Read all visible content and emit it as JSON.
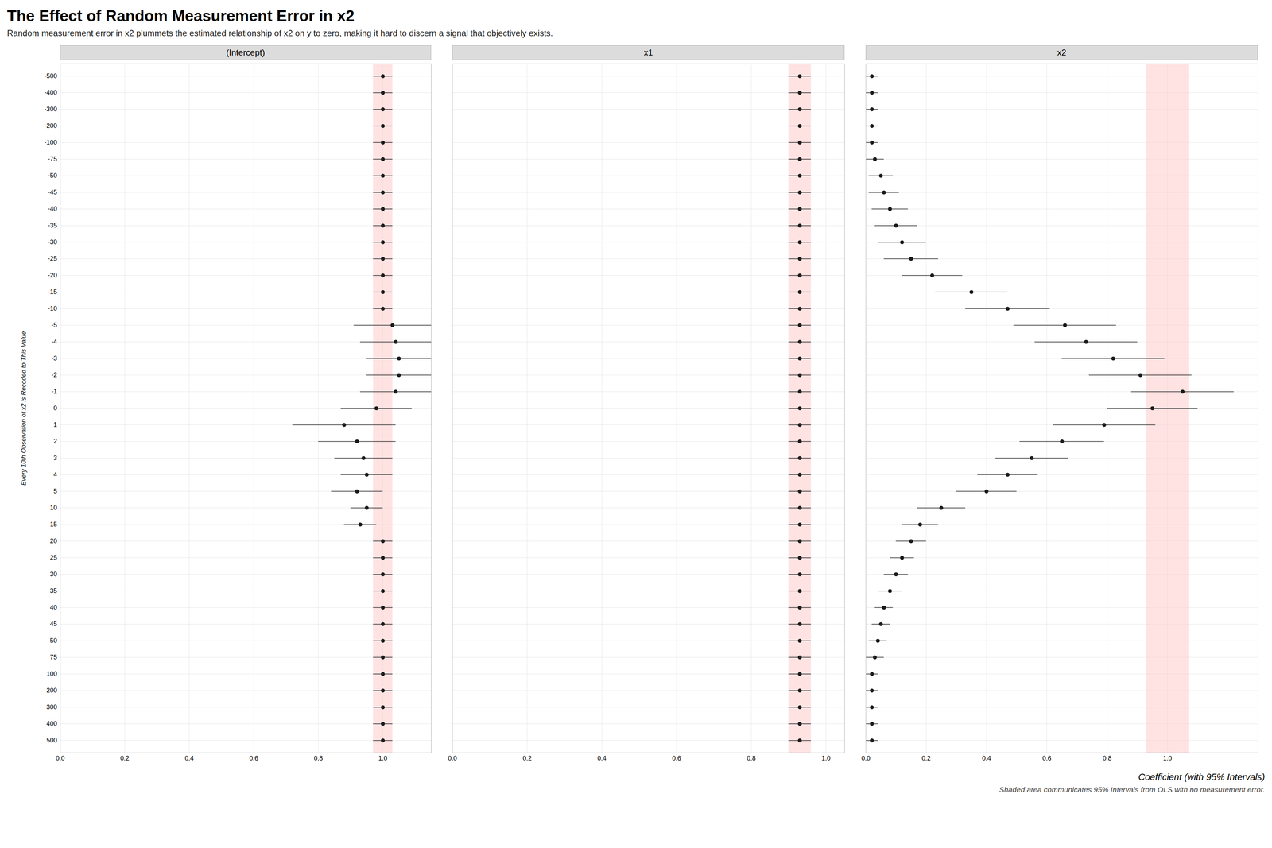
{
  "chart_data": {
    "type": "dot",
    "title": "The Effect of Random Measurement Error in x2",
    "subtitle": "Random measurement error in x2 plummets the estimated relationship of x2 on y to zero, making it hard to discern a signal that objectively exists.",
    "ylabel": "Every 10th Observation of x2 is Recoded to This Value",
    "xlabel": "Coefficient (with 95% Intervals)",
    "footnote": "Shaded area communicates 95% Intervals from OLS with no measurement error.",
    "grid": true,
    "color": "#1a1a1a",
    "categories": [
      500,
      400,
      300,
      200,
      100,
      75,
      50,
      45,
      40,
      35,
      30,
      25,
      20,
      15,
      10,
      5,
      4,
      3,
      2,
      1,
      0,
      -1,
      -2,
      -3,
      -4,
      -5,
      -10,
      -15,
      -20,
      -25,
      -30,
      -35,
      -40,
      -45,
      -50,
      -75,
      -100,
      -200,
      -300,
      -400,
      -500
    ],
    "series": [
      {
        "name": "(Intercept)",
        "values": [
          1.0,
          1.0,
          1.0,
          1.0,
          1.0,
          1.0,
          1.0,
          1.0,
          1.0,
          1.0,
          1.0,
          1.0,
          1.0,
          0.93,
          0.95,
          0.92,
          0.95,
          0.94,
          0.92,
          0.88,
          0.98,
          1.04,
          1.05,
          1.05,
          1.04,
          1.03,
          1.0,
          1.0,
          1.0,
          1.0,
          1.0,
          1.0,
          1.0,
          1.0,
          1.0,
          1.0,
          1.0,
          1.0,
          1.0,
          1.0,
          1.0
        ],
        "lo": [
          0.97,
          0.97,
          0.97,
          0.97,
          0.97,
          0.97,
          0.97,
          0.97,
          0.97,
          0.97,
          0.97,
          0.97,
          0.97,
          0.88,
          0.9,
          0.84,
          0.87,
          0.85,
          0.8,
          0.72,
          0.87,
          0.93,
          0.95,
          0.95,
          0.93,
          0.91,
          0.97,
          0.97,
          0.97,
          0.97,
          0.97,
          0.97,
          0.97,
          0.97,
          0.97,
          0.97,
          0.97,
          0.97,
          0.97,
          0.97,
          0.97
        ],
        "hi": [
          1.03,
          1.03,
          1.03,
          1.03,
          1.03,
          1.03,
          1.03,
          1.03,
          1.03,
          1.03,
          1.03,
          1.03,
          1.03,
          0.98,
          1.0,
          1.0,
          1.03,
          1.03,
          1.04,
          1.04,
          1.09,
          1.15,
          1.15,
          1.15,
          1.15,
          1.15,
          1.03,
          1.03,
          1.03,
          1.03,
          1.03,
          1.03,
          1.03,
          1.03,
          1.03,
          1.03,
          1.03,
          1.03,
          1.03,
          1.03,
          1.03
        ],
        "shade": {
          "lo": 0.97,
          "hi": 1.03,
          "color": "#ffcccc"
        },
        "xlim": [
          0.0,
          1.15
        ],
        "xticks": [
          {
            "value": 0.0,
            "label": "0.0"
          },
          0.2,
          0.4,
          0.6,
          0.8,
          {
            "value": 1.0,
            "label": "1.0"
          }
        ]
      },
      {
        "name": "x1",
        "values": [
          0.93,
          0.93,
          0.93,
          0.93,
          0.93,
          0.93,
          0.93,
          0.93,
          0.93,
          0.93,
          0.93,
          0.93,
          0.93,
          0.93,
          0.93,
          0.93,
          0.93,
          0.93,
          0.93,
          0.93,
          0.93,
          0.93,
          0.93,
          0.93,
          0.93,
          0.93,
          0.93,
          0.93,
          0.93,
          0.93,
          0.93,
          0.93,
          0.93,
          0.93,
          0.93,
          0.93,
          0.93,
          0.93,
          0.93,
          0.93,
          0.93
        ],
        "lo": [
          0.9,
          0.9,
          0.9,
          0.9,
          0.9,
          0.9,
          0.9,
          0.9,
          0.9,
          0.9,
          0.9,
          0.9,
          0.9,
          0.9,
          0.9,
          0.9,
          0.9,
          0.9,
          0.9,
          0.9,
          0.9,
          0.9,
          0.9,
          0.9,
          0.9,
          0.9,
          0.9,
          0.9,
          0.9,
          0.9,
          0.9,
          0.9,
          0.9,
          0.9,
          0.9,
          0.9,
          0.9,
          0.9,
          0.9,
          0.9,
          0.9
        ],
        "hi": [
          0.96,
          0.96,
          0.96,
          0.96,
          0.96,
          0.96,
          0.96,
          0.96,
          0.96,
          0.96,
          0.96,
          0.96,
          0.96,
          0.96,
          0.96,
          0.96,
          0.96,
          0.96,
          0.96,
          0.96,
          0.96,
          0.96,
          0.96,
          0.96,
          0.96,
          0.96,
          0.96,
          0.96,
          0.96,
          0.96,
          0.96,
          0.96,
          0.96,
          0.96,
          0.96,
          0.96,
          0.96,
          0.96,
          0.96,
          0.96,
          0.96
        ],
        "shade": {
          "lo": 0.9,
          "hi": 0.96,
          "color": "#ffcccc"
        },
        "xlim": [
          0.0,
          1.05
        ],
        "xticks": [
          {
            "value": 0.0,
            "label": "0.0"
          },
          0.2,
          0.4,
          0.6,
          0.8,
          {
            "value": 1.0,
            "label": "1.0"
          }
        ]
      },
      {
        "name": "x2",
        "values": [
          0.02,
          0.02,
          0.02,
          0.02,
          0.02,
          0.03,
          0.04,
          0.05,
          0.06,
          0.08,
          0.1,
          0.12,
          0.15,
          0.18,
          0.25,
          0.4,
          0.47,
          0.55,
          0.65,
          0.79,
          0.95,
          1.05,
          0.91,
          0.82,
          0.73,
          0.66,
          0.47,
          0.35,
          0.22,
          0.15,
          0.12,
          0.1,
          0.08,
          0.06,
          0.05,
          0.03,
          0.02,
          0.02,
          0.02,
          0.02,
          0.02
        ],
        "lo": [
          0.0,
          0.0,
          0.0,
          0.0,
          0.0,
          0.0,
          0.01,
          0.02,
          0.03,
          0.04,
          0.06,
          0.08,
          0.1,
          0.12,
          0.17,
          0.3,
          0.37,
          0.43,
          0.51,
          0.62,
          0.8,
          0.88,
          0.74,
          0.65,
          0.56,
          0.49,
          0.33,
          0.23,
          0.12,
          0.06,
          0.04,
          0.03,
          0.02,
          0.01,
          0.01,
          0.0,
          0.0,
          0.0,
          0.0,
          0.0,
          0.0
        ],
        "hi": [
          0.04,
          0.04,
          0.04,
          0.04,
          0.04,
          0.06,
          0.07,
          0.08,
          0.09,
          0.12,
          0.14,
          0.16,
          0.2,
          0.24,
          0.33,
          0.5,
          0.57,
          0.67,
          0.79,
          0.96,
          1.1,
          1.22,
          1.08,
          0.99,
          0.9,
          0.83,
          0.61,
          0.47,
          0.32,
          0.24,
          0.2,
          0.17,
          0.14,
          0.11,
          0.09,
          0.06,
          0.04,
          0.04,
          0.04,
          0.04,
          0.04
        ],
        "shade": {
          "lo": 0.93,
          "hi": 1.07,
          "color": "#ffcccc"
        },
        "xlim": [
          0.0,
          1.3
        ],
        "xticks": [
          {
            "value": 0.0,
            "label": "0.0"
          },
          0.2,
          0.4,
          0.6,
          0.8,
          {
            "value": 1.0,
            "label": "1.0"
          }
        ]
      }
    ]
  }
}
